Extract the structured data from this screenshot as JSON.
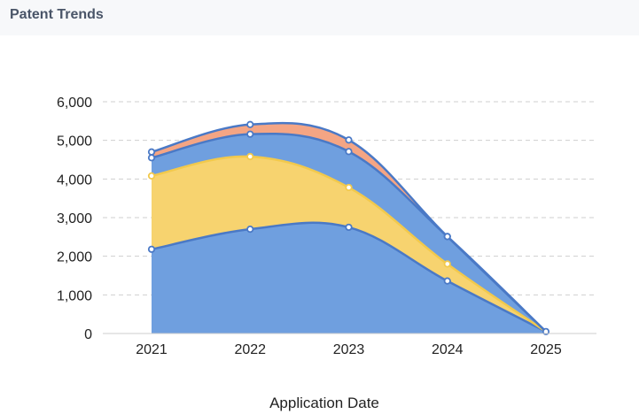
{
  "header": {
    "title": "Patent Trends"
  },
  "chart_data": {
    "type": "area",
    "stacked": true,
    "smooth": true,
    "title": "",
    "xlabel": "Application Date",
    "ylabel": "",
    "categories": [
      "2021",
      "2022",
      "2023",
      "2024",
      "2025"
    ],
    "ylim": [
      0,
      6000
    ],
    "yticks": [
      0,
      1000,
      2000,
      3000,
      4000,
      5000,
      6000
    ],
    "ytick_labels": [
      "0",
      "1,000",
      "2,000",
      "3,000",
      "4,000",
      "5,000",
      "6,000"
    ],
    "grid": true,
    "legend": "none",
    "series": [
      {
        "values": [
          2180,
          2700,
          2750,
          1360,
          50
        ],
        "color": "#6f9fdf",
        "line": "#4a79c6"
      },
      {
        "values": [
          1900,
          1880,
          1030,
          440,
          0
        ],
        "color": "#f7d36f",
        "line": "#f2c94c"
      },
      {
        "values": [
          470,
          580,
          930,
          710,
          0
        ],
        "color": "#6f9fdf",
        "line": "#4a79c6"
      },
      {
        "values": [
          150,
          250,
          300,
          0,
          0
        ],
        "color": "#f4a584",
        "line": "#4a79c6"
      }
    ]
  }
}
